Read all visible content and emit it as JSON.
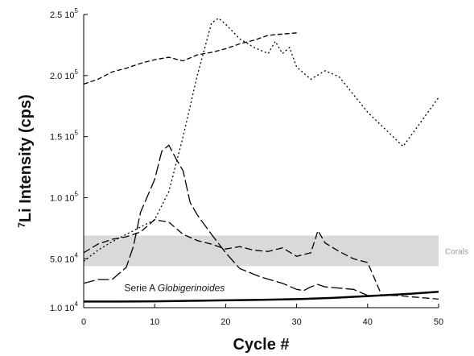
{
  "chart_data": {
    "type": "line",
    "xlabel": "Cycle #",
    "ylabel": "Li Intensity (cps)",
    "ylabel_superscript": "7",
    "xlim": [
      0,
      50
    ],
    "ylim": [
      10000,
      250000
    ],
    "x_ticks": [
      0,
      10,
      20,
      30,
      40,
      50
    ],
    "y_ticks": [
      {
        "value": 10000,
        "base": "1.0 10",
        "exp": "4"
      },
      {
        "value": 50000,
        "base": "5.0 10",
        "exp": "4"
      },
      {
        "value": 100000,
        "base": "1.0 10",
        "exp": "5"
      },
      {
        "value": 150000,
        "base": "1.5 10",
        "exp": "5"
      },
      {
        "value": 200000,
        "base": "2.0 10",
        "exp": "5"
      },
      {
        "value": 250000,
        "base": "2.5 10",
        "exp": "5"
      }
    ],
    "band": {
      "label": "Corals",
      "y_range": [
        44000,
        69000
      ],
      "color": "#d9d9d9"
    },
    "annotation": {
      "prefix": "Serie A ",
      "italic": "Globigerinoides",
      "x": 8,
      "y": 23500
    },
    "series": [
      {
        "style": "dash-short",
        "color": "#000000",
        "x": [
          0,
          2,
          4,
          6,
          8,
          10,
          12,
          14,
          16,
          18,
          20,
          22,
          24,
          26,
          28,
          30
        ],
        "y": [
          193000,
          197000,
          203000,
          206000,
          210000,
          213000,
          215000,
          212000,
          217000,
          219000,
          222000,
          226000,
          229000,
          233000,
          234000,
          235000
        ]
      },
      {
        "style": "dotted",
        "color": "#000000",
        "x": [
          0,
          2,
          4,
          6,
          8,
          10,
          12,
          14,
          16,
          18,
          19,
          20,
          22,
          24,
          26,
          27,
          28,
          29,
          30,
          32,
          34,
          36,
          40,
          45,
          50
        ],
        "y": [
          48000,
          57000,
          64000,
          70000,
          76000,
          82000,
          105000,
          150000,
          200000,
          243000,
          247000,
          242000,
          230000,
          223000,
          218000,
          228000,
          218000,
          223000,
          207000,
          197000,
          204000,
          199000,
          170000,
          142000,
          182000
        ]
      },
      {
        "style": "long-dash",
        "color": "#000000",
        "x": [
          0,
          2,
          4,
          6,
          7,
          8,
          10,
          11,
          12,
          13,
          14,
          15,
          16,
          18,
          20,
          22,
          25,
          28,
          30,
          31,
          32,
          33,
          34,
          36,
          38,
          40
        ],
        "y": [
          30000,
          33000,
          33000,
          43000,
          60000,
          88000,
          115000,
          138000,
          143000,
          132000,
          122000,
          96000,
          86000,
          70000,
          55000,
          42000,
          35000,
          30000,
          25000,
          24000,
          27000,
          29000,
          27000,
          26000,
          25000,
          20000
        ]
      },
      {
        "style": "dash-dot-long",
        "color": "#000000",
        "x": [
          0,
          2,
          4,
          6,
          8,
          10,
          12,
          14,
          16,
          18,
          20,
          22,
          24,
          26,
          28,
          30,
          32,
          33,
          34,
          36,
          38,
          40,
          42,
          44,
          46,
          48,
          50
        ],
        "y": [
          55000,
          62000,
          66000,
          68000,
          72000,
          82000,
          80000,
          70000,
          65000,
          62000,
          58000,
          60000,
          57000,
          56000,
          59000,
          52000,
          55000,
          73000,
          63000,
          56000,
          50000,
          47000,
          20000,
          20000,
          19000,
          18000,
          17000
        ]
      },
      {
        "style": "solid",
        "color": "#000000",
        "x": [
          0,
          5,
          10,
          15,
          20,
          25,
          30,
          35,
          40,
          45,
          50
        ],
        "y": [
          15000,
          15000,
          15200,
          15600,
          16000,
          16400,
          17000,
          18000,
          19500,
          21000,
          23000
        ]
      }
    ]
  }
}
